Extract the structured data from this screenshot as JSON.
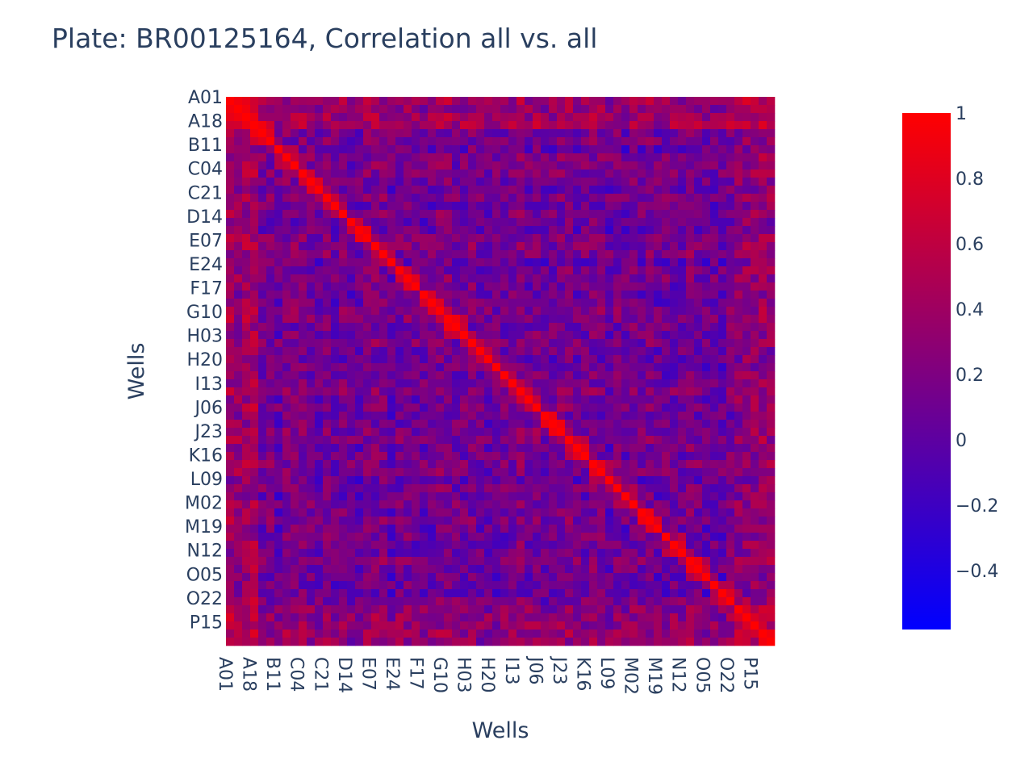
{
  "chart_data": {
    "type": "heatmap",
    "title": "Plate: BR00125164, Correlation all vs. all",
    "xlabel": "Wells",
    "ylabel": "Wells",
    "x_tick_labels": [
      "A01",
      "A18",
      "B11",
      "C04",
      "C21",
      "D14",
      "E07",
      "E24",
      "F17",
      "G10",
      "H03",
      "H20",
      "I13",
      "J06",
      "J23",
      "K16",
      "L09",
      "M02",
      "M19",
      "N12",
      "O05",
      "O22",
      "P15"
    ],
    "y_tick_labels": [
      "A01",
      "A18",
      "B11",
      "C04",
      "C21",
      "D14",
      "E07",
      "E24",
      "F17",
      "G10",
      "H03",
      "H20",
      "I13",
      "J06",
      "J23",
      "K16",
      "L09",
      "M02",
      "M19",
      "N12",
      "O05",
      "O22",
      "P15"
    ],
    "colorbar": {
      "min": -0.58,
      "max": 1,
      "tick_values": [
        1,
        0.8,
        0.6,
        0.4,
        0.2,
        0,
        -0.2,
        -0.4
      ],
      "tick_labels": [
        "1",
        "0.8",
        "0.6",
        "0.4",
        "0.2",
        "0",
        "−0.2",
        "−0.4"
      ],
      "color_low": "#0000ff",
      "color_high": "#ff0000"
    },
    "diagonal_value": 1
  }
}
